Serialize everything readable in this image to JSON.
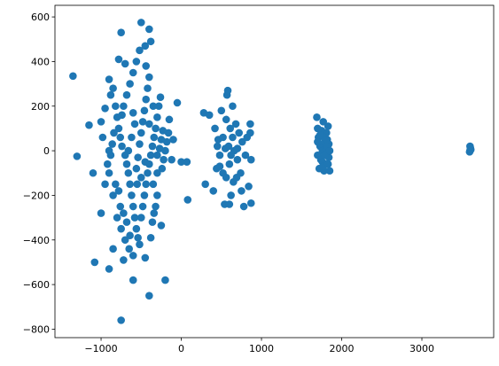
{
  "chart_data": {
    "type": "scatter",
    "color": "#1f77b4",
    "x": [
      -1350,
      -1300,
      -1150,
      -1100,
      -1080,
      -1000,
      -900,
      -850,
      -750,
      -720,
      -650,
      -600,
      -600,
      -400,
      -200,
      -250,
      -500,
      -450,
      -400,
      -380,
      -750,
      -780,
      -700,
      -900,
      -1000,
      -950,
      -50,
      0,
      80,
      70,
      -100,
      -150,
      -880,
      -850,
      -820,
      -800,
      -780,
      -760,
      -740,
      -700,
      -680,
      -660,
      -640,
      -620,
      -600,
      -580,
      -560,
      -540,
      -520,
      -500,
      -480,
      -460,
      -440,
      -420,
      -400,
      -380,
      -360,
      -340,
      -320,
      -300,
      -280,
      -260,
      -240,
      -220,
      -200,
      -180,
      -160,
      -300,
      -320,
      -340,
      -360,
      -380,
      -450,
      -700,
      -750,
      -800,
      -850,
      -900,
      -920,
      -880,
      -860,
      -840,
      -820,
      -780,
      -760,
      -720,
      -680,
      -640,
      -560,
      -540,
      -520,
      -500,
      -480,
      -460,
      -440,
      -420,
      -400,
      -440,
      -600,
      -640,
      -560,
      -520,
      -680,
      -720,
      -740,
      -580,
      -620,
      -660,
      -550,
      -500,
      -450,
      -350,
      -300,
      -270,
      -230,
      -400,
      -350,
      -250,
      -120,
      -900,
      -950,
      -980,
      -600,
      -300,
      280,
      300,
      350,
      400,
      420,
      440,
      460,
      480,
      500,
      520,
      540,
      560,
      570,
      580,
      590,
      600,
      610,
      620,
      640,
      650,
      660,
      680,
      700,
      720,
      740,
      760,
      780,
      800,
      820,
      840,
      860,
      870,
      870,
      860,
      450,
      520,
      560,
      600,
      640,
      700,
      480,
      550,
      620,
      690,
      750,
      1690,
      1700,
      1700,
      1710,
      1720,
      1730,
      1740,
      1750,
      1760,
      1770,
      1780,
      1790,
      1800,
      1810,
      1820,
      1830,
      1840,
      1850,
      1800,
      1780,
      1760,
      1820,
      1840,
      1790,
      1810,
      1730,
      1700,
      1850,
      1770,
      1830,
      3600,
      3610,
      3595,
      3605,
      3600
    ],
    "y": [
      335,
      -25,
      115,
      -100,
      -500,
      -280,
      -530,
      -440,
      -760,
      -490,
      -440,
      -580,
      -470,
      -650,
      -580,
      -335,
      575,
      470,
      545,
      490,
      530,
      410,
      390,
      320,
      130,
      190,
      215,
      -50,
      -220,
      -50,
      50,
      140,
      250,
      280,
      200,
      150,
      100,
      60,
      20,
      -20,
      -60,
      -100,
      -150,
      -200,
      -250,
      -300,
      -350,
      -390,
      -420,
      -300,
      -250,
      -200,
      -150,
      -100,
      -60,
      -20,
      20,
      60,
      100,
      150,
      200,
      240,
      -80,
      -40,
      0,
      40,
      80,
      -200,
      -250,
      -280,
      -320,
      -390,
      -480,
      -400,
      -350,
      -300,
      -200,
      -100,
      -60,
      -20,
      30,
      80,
      -150,
      -180,
      -250,
      -280,
      -320,
      -380,
      -80,
      -30,
      30,
      80,
      130,
      180,
      230,
      280,
      330,
      380,
      350,
      300,
      400,
      450,
      250,
      200,
      160,
      120,
      60,
      0,
      -150,
      -120,
      -50,
      -150,
      -100,
      10,
      90,
      120,
      200,
      50,
      -40,
      0,
      -150,
      60,
      170,
      -20,
      170,
      -150,
      160,
      -180,
      100,
      -80,
      50,
      -20,
      180,
      -100,
      -240,
      140,
      250,
      270,
      20,
      -60,
      100,
      -200,
      60,
      -140,
      0,
      120,
      -40,
      80,
      -100,
      40,
      -250,
      -20,
      60,
      -160,
      120,
      -235,
      -40,
      80,
      20,
      60,
      -120,
      -240,
      200,
      10,
      -70,
      10,
      -20,
      -120,
      -180,
      150,
      100,
      -20,
      60,
      -80,
      20,
      -40,
      90,
      0,
      130,
      -90,
      40,
      -60,
      80,
      -10,
      110,
      30,
      -90,
      10,
      60,
      -50,
      50,
      -30,
      -20,
      20,
      70,
      40,
      0,
      -70,
      -60,
      20,
      5,
      -5,
      12,
      0
    ],
    "xlim": [
      -1575,
      3895
    ],
    "ylim": [
      -838,
      652
    ],
    "xticks": [
      {
        "value": -1000,
        "label": "−1000"
      },
      0,
      1000,
      2000,
      3000
    ],
    "yticks": [
      600,
      400,
      200,
      0,
      {
        "value": -200,
        "label": "−200"
      },
      {
        "value": -400,
        "label": "−400"
      },
      {
        "value": -600,
        "label": "−600"
      },
      {
        "value": -800,
        "label": "−800"
      }
    ]
  }
}
